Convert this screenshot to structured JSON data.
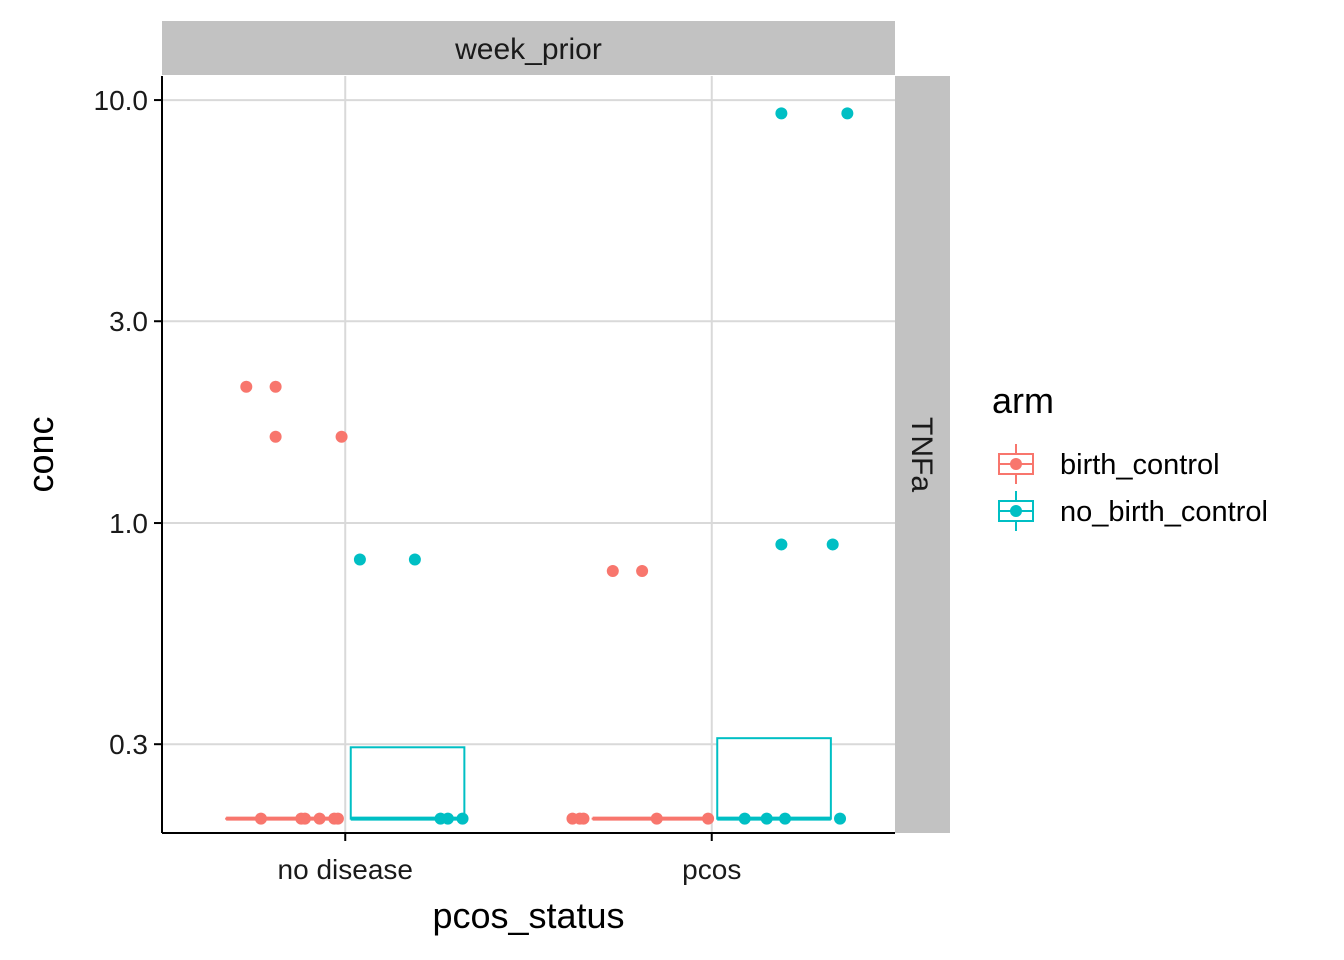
{
  "chart_data": {
    "type": "box+jitter",
    "facet_column_label": "week_prior",
    "facet_row_label": "TNFa",
    "xlabel": "pcos_status",
    "ylabel": "conc",
    "y_scale": "log10",
    "y_ticks": [
      {
        "value": 0.3,
        "label": "0.3"
      },
      {
        "value": 1.0,
        "label": "1.0"
      },
      {
        "value": 3.0,
        "label": "3.0"
      },
      {
        "value": 10.0,
        "label": "10.0"
      }
    ],
    "ylim": [
      0.185,
      11.4
    ],
    "categories": [
      "no disease",
      "pcos"
    ],
    "legend": {
      "title": "arm",
      "position": "right",
      "entries": [
        {
          "name": "birth_control",
          "color": "#F8766D"
        },
        {
          "name": "no_birth_control",
          "color": "#00BFC4"
        }
      ]
    },
    "grid": true,
    "series": [
      {
        "name": "birth_control",
        "color": "#F8766D",
        "boxes": [
          {
            "category": "no disease",
            "q1": 0.2,
            "median": 0.2,
            "q3": 0.2,
            "lower": 0.2,
            "upper": 0.2
          },
          {
            "category": "pcos",
            "q1": 0.2,
            "median": 0.2,
            "q3": 0.2,
            "lower": 0.2,
            "upper": 0.2
          }
        ],
        "points": [
          {
            "category": "no disease",
            "jitter": -0.27,
            "value": 2.1
          },
          {
            "category": "no disease",
            "jitter": -0.19,
            "value": 2.1
          },
          {
            "category": "no disease",
            "jitter": -0.19,
            "value": 1.6
          },
          {
            "category": "no disease",
            "jitter": -0.01,
            "value": 1.6
          },
          {
            "category": "no disease",
            "jitter": -0.23,
            "value": 0.2
          },
          {
            "category": "no disease",
            "jitter": -0.12,
            "value": 0.2
          },
          {
            "category": "no disease",
            "jitter": -0.11,
            "value": 0.2
          },
          {
            "category": "no disease",
            "jitter": -0.07,
            "value": 0.2
          },
          {
            "category": "no disease",
            "jitter": -0.03,
            "value": 0.2
          },
          {
            "category": "no disease",
            "jitter": -0.02,
            "value": 0.2
          },
          {
            "category": "pcos",
            "jitter": -0.27,
            "value": 0.77
          },
          {
            "category": "pcos",
            "jitter": -0.19,
            "value": 0.77
          },
          {
            "category": "pcos",
            "jitter": -0.38,
            "value": 0.2
          },
          {
            "category": "pcos",
            "jitter": -0.36,
            "value": 0.2
          },
          {
            "category": "pcos",
            "jitter": -0.35,
            "value": 0.2
          },
          {
            "category": "pcos",
            "jitter": -0.15,
            "value": 0.2
          },
          {
            "category": "pcos",
            "jitter": -0.01,
            "value": 0.2
          }
        ]
      },
      {
        "name": "no_birth_control",
        "color": "#00BFC4",
        "boxes": [
          {
            "category": "no disease",
            "q1": 0.2,
            "median": 0.2,
            "q3": 0.295,
            "lower": 0.2,
            "upper": 0.295
          },
          {
            "category": "pcos",
            "q1": 0.2,
            "median": 0.2,
            "q3": 0.31,
            "lower": 0.2,
            "upper": 0.31
          }
        ],
        "points": [
          {
            "category": "no disease",
            "jitter": 0.04,
            "value": 0.82
          },
          {
            "category": "no disease",
            "jitter": 0.19,
            "value": 0.82
          },
          {
            "category": "no disease",
            "jitter": 0.26,
            "value": 0.2
          },
          {
            "category": "no disease",
            "jitter": 0.28,
            "value": 0.2
          },
          {
            "category": "no disease",
            "jitter": 0.32,
            "value": 0.2
          },
          {
            "category": "pcos",
            "jitter": 0.19,
            "value": 9.3
          },
          {
            "category": "pcos",
            "jitter": 0.37,
            "value": 9.3
          },
          {
            "category": "pcos",
            "jitter": 0.19,
            "value": 0.89
          },
          {
            "category": "pcos",
            "jitter": 0.33,
            "value": 0.89
          },
          {
            "category": "pcos",
            "jitter": 0.09,
            "value": 0.2
          },
          {
            "category": "pcos",
            "jitter": 0.15,
            "value": 0.2
          },
          {
            "category": "pcos",
            "jitter": 0.2,
            "value": 0.2
          },
          {
            "category": "pcos",
            "jitter": 0.35,
            "value": 0.2
          }
        ]
      }
    ]
  }
}
